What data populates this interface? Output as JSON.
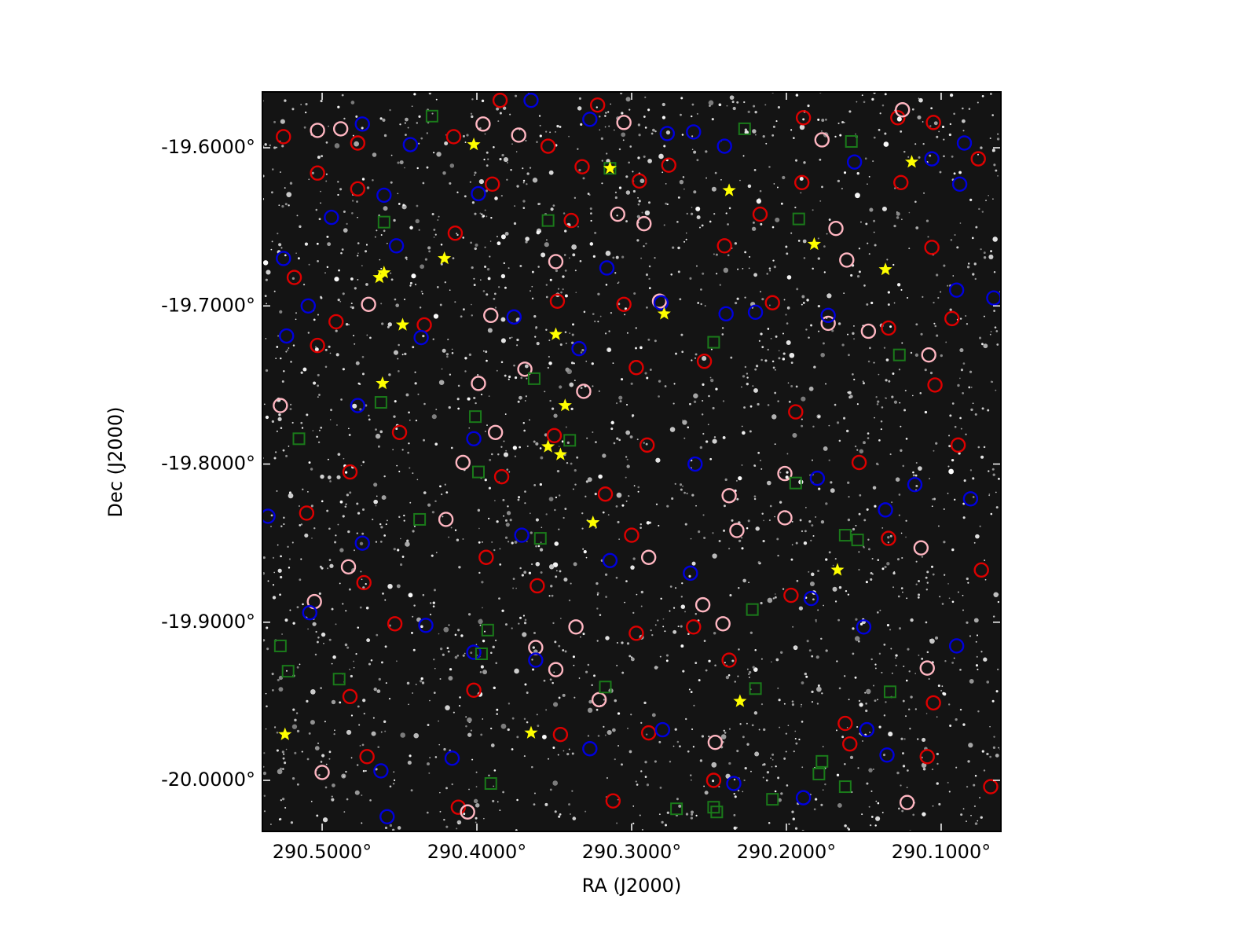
{
  "chart_data": {
    "type": "scatter",
    "xlabel": "RA (J2000)",
    "ylabel": "Dec (J2000)",
    "xlim": [
      290.5386,
      290.0614
    ],
    "ylim": [
      -20.0323,
      -19.5647
    ],
    "xticks": [
      {
        "value": 290.5,
        "label": "290.5000°"
      },
      {
        "value": 290.4,
        "label": "290.4000°"
      },
      {
        "value": 290.3,
        "label": "290.3000°"
      },
      {
        "value": 290.2,
        "label": "290.2000°"
      },
      {
        "value": 290.1,
        "label": "290.1000°"
      }
    ],
    "yticks": [
      {
        "value": -19.6,
        "label": "-19.6000°"
      },
      {
        "value": -19.7,
        "label": "-19.7000°"
      },
      {
        "value": -19.8,
        "label": "-19.8000°"
      },
      {
        "value": -19.9,
        "label": "-19.9000°"
      },
      {
        "value": -20.0,
        "label": "-20.0000°"
      }
    ],
    "series": [
      {
        "color": "#dd0000",
        "marker": "circle",
        "x": [
          290.525,
          290.477,
          290.415,
          290.385,
          290.354,
          290.322,
          290.276,
          290.189,
          290.128,
          290.105,
          290.076,
          290.503,
          290.477,
          290.39,
          290.332,
          290.295,
          290.19,
          290.126,
          290.414,
          290.339,
          290.217,
          290.24,
          290.106,
          290.518,
          290.491,
          290.434,
          290.348,
          290.305,
          290.209,
          290.134,
          290.093,
          290.503,
          290.297,
          290.253,
          290.104,
          290.45,
          290.35,
          290.29,
          290.194,
          290.089,
          290.482,
          290.384,
          290.317,
          290.153,
          290.51,
          290.394,
          290.3,
          290.134,
          290.074,
          290.473,
          290.361,
          290.197,
          290.453,
          290.297,
          290.26,
          290.482,
          290.402,
          290.237,
          290.162,
          290.105,
          290.471,
          290.346,
          290.289,
          290.159,
          290.412,
          290.312,
          290.247,
          290.109,
          290.068
        ],
        "y": [
          -19.593,
          -19.597,
          -19.593,
          -19.57,
          -19.599,
          -19.573,
          -19.611,
          -19.581,
          -19.581,
          -19.584,
          -19.607,
          -19.616,
          -19.626,
          -19.623,
          -19.612,
          -19.621,
          -19.622,
          -19.622,
          -19.654,
          -19.646,
          -19.642,
          -19.662,
          -19.663,
          -19.682,
          -19.71,
          -19.712,
          -19.697,
          -19.699,
          -19.698,
          -19.714,
          -19.708,
          -19.725,
          -19.739,
          -19.735,
          -19.75,
          -19.78,
          -19.782,
          -19.788,
          -19.767,
          -19.788,
          -19.805,
          -19.808,
          -19.819,
          -19.799,
          -19.831,
          -19.859,
          -19.845,
          -19.847,
          -19.867,
          -19.875,
          -19.877,
          -19.883,
          -19.901,
          -19.907,
          -19.903,
          -19.947,
          -19.943,
          -19.924,
          -19.964,
          -19.951,
          -19.985,
          -19.971,
          -19.97,
          -19.977,
          -20.017,
          -20.013,
          -20.0,
          -19.985,
          -20.004
        ]
      },
      {
        "color": "#ffb6c1",
        "marker": "circle",
        "x": [
          290.503,
          290.488,
          290.396,
          290.373,
          290.305,
          290.177,
          290.125,
          290.349,
          290.309,
          290.292,
          290.168,
          290.161,
          290.47,
          290.391,
          290.282,
          290.173,
          290.147,
          290.108,
          290.369,
          290.331,
          290.399,
          290.527,
          290.388,
          290.409,
          290.201,
          290.237,
          290.42,
          290.201,
          290.113,
          290.483,
          290.232,
          290.289,
          290.241,
          290.505,
          290.362,
          290.336,
          290.349,
          290.109,
          290.321,
          290.5,
          290.406,
          290.122,
          290.246,
          290.254
        ],
        "y": [
          -19.589,
          -19.588,
          -19.585,
          -19.592,
          -19.584,
          -19.595,
          -19.576,
          -19.672,
          -19.642,
          -19.648,
          -19.651,
          -19.671,
          -19.699,
          -19.706,
          -19.697,
          -19.711,
          -19.716,
          -19.731,
          -19.74,
          -19.754,
          -19.749,
          -19.763,
          -19.78,
          -19.799,
          -19.806,
          -19.82,
          -19.835,
          -19.834,
          -19.853,
          -19.865,
          -19.842,
          -19.859,
          -19.901,
          -19.887,
          -19.916,
          -19.903,
          -19.93,
          -19.929,
          -19.949,
          -19.995,
          -20.02,
          -20.014,
          -19.976,
          -19.889
        ]
      },
      {
        "color": "#0000dd",
        "marker": "circle",
        "x": [
          290.474,
          290.443,
          290.365,
          290.327,
          290.277,
          290.26,
          290.24,
          290.085,
          290.106,
          290.156,
          290.088,
          290.46,
          290.399,
          290.494,
          290.452,
          290.525,
          290.509,
          290.523,
          290.436,
          290.376,
          290.316,
          290.334,
          290.281,
          290.239,
          290.22,
          290.173,
          290.09,
          290.066,
          290.477,
          290.402,
          290.259,
          290.18,
          290.117,
          290.081,
          290.535,
          290.474,
          290.371,
          290.314,
          290.262,
          290.136,
          290.508,
          290.433,
          290.402,
          290.362,
          290.184,
          290.15,
          290.09,
          290.462,
          290.416,
          290.327,
          290.28,
          290.148,
          290.135,
          290.189,
          290.234,
          290.458
        ],
        "y": [
          -19.585,
          -19.598,
          -19.57,
          -19.582,
          -19.591,
          -19.59,
          -19.599,
          -19.597,
          -19.607,
          -19.609,
          -19.623,
          -19.63,
          -19.629,
          -19.644,
          -19.662,
          -19.67,
          -19.7,
          -19.719,
          -19.72,
          -19.707,
          -19.676,
          -19.727,
          -19.698,
          -19.705,
          -19.704,
          -19.706,
          -19.69,
          -19.695,
          -19.763,
          -19.784,
          -19.8,
          -19.809,
          -19.813,
          -19.822,
          -19.833,
          -19.85,
          -19.845,
          -19.861,
          -19.869,
          -19.829,
          -19.894,
          -19.902,
          -19.919,
          -19.924,
          -19.885,
          -19.903,
          -19.915,
          -19.994,
          -19.986,
          -19.98,
          -19.968,
          -19.968,
          -19.984,
          -20.011,
          -20.002,
          -20.023
        ]
      },
      {
        "color": "#1a7a1a",
        "marker": "square",
        "x": [
          290.429,
          290.227,
          290.158,
          290.314,
          290.46,
          290.354,
          290.192,
          290.247,
          290.127,
          290.363,
          290.462,
          290.515,
          290.401,
          290.34,
          290.399,
          290.194,
          290.437,
          290.359,
          290.162,
          290.154,
          290.222,
          290.393,
          290.397,
          290.527,
          290.522,
          290.489,
          290.317,
          290.22,
          290.133,
          290.247,
          290.245,
          290.271,
          290.209,
          290.177,
          290.179,
          290.162,
          290.391
        ],
        "y": [
          -19.58,
          -19.588,
          -19.596,
          -19.613,
          -19.647,
          -19.646,
          -19.645,
          -19.723,
          -19.731,
          -19.746,
          -19.761,
          -19.784,
          -19.77,
          -19.785,
          -19.805,
          -19.812,
          -19.835,
          -19.847,
          -19.845,
          -19.848,
          -19.892,
          -19.905,
          -19.92,
          -19.915,
          -19.931,
          -19.936,
          -19.941,
          -19.942,
          -19.944,
          -20.017,
          -20.02,
          -20.018,
          -20.012,
          -19.988,
          -19.996,
          -20.004,
          -20.002
        ]
      },
      {
        "color": "#ffff00",
        "marker": "star",
        "x": [
          290.402,
          290.314,
          290.119,
          290.237,
          290.182,
          290.421,
          290.46,
          290.463,
          290.136,
          290.279,
          290.448,
          290.349,
          290.461,
          290.343,
          290.354,
          290.346,
          290.325,
          290.167,
          290.23,
          290.365,
          290.524
        ],
        "y": [
          -19.598,
          -19.613,
          -19.609,
          -19.627,
          -19.661,
          -19.67,
          -19.679,
          -19.682,
          -19.677,
          -19.705,
          -19.712,
          -19.718,
          -19.749,
          -19.763,
          -19.789,
          -19.794,
          -19.837,
          -19.867,
          -19.95,
          -19.97,
          -19.971
        ]
      }
    ]
  }
}
